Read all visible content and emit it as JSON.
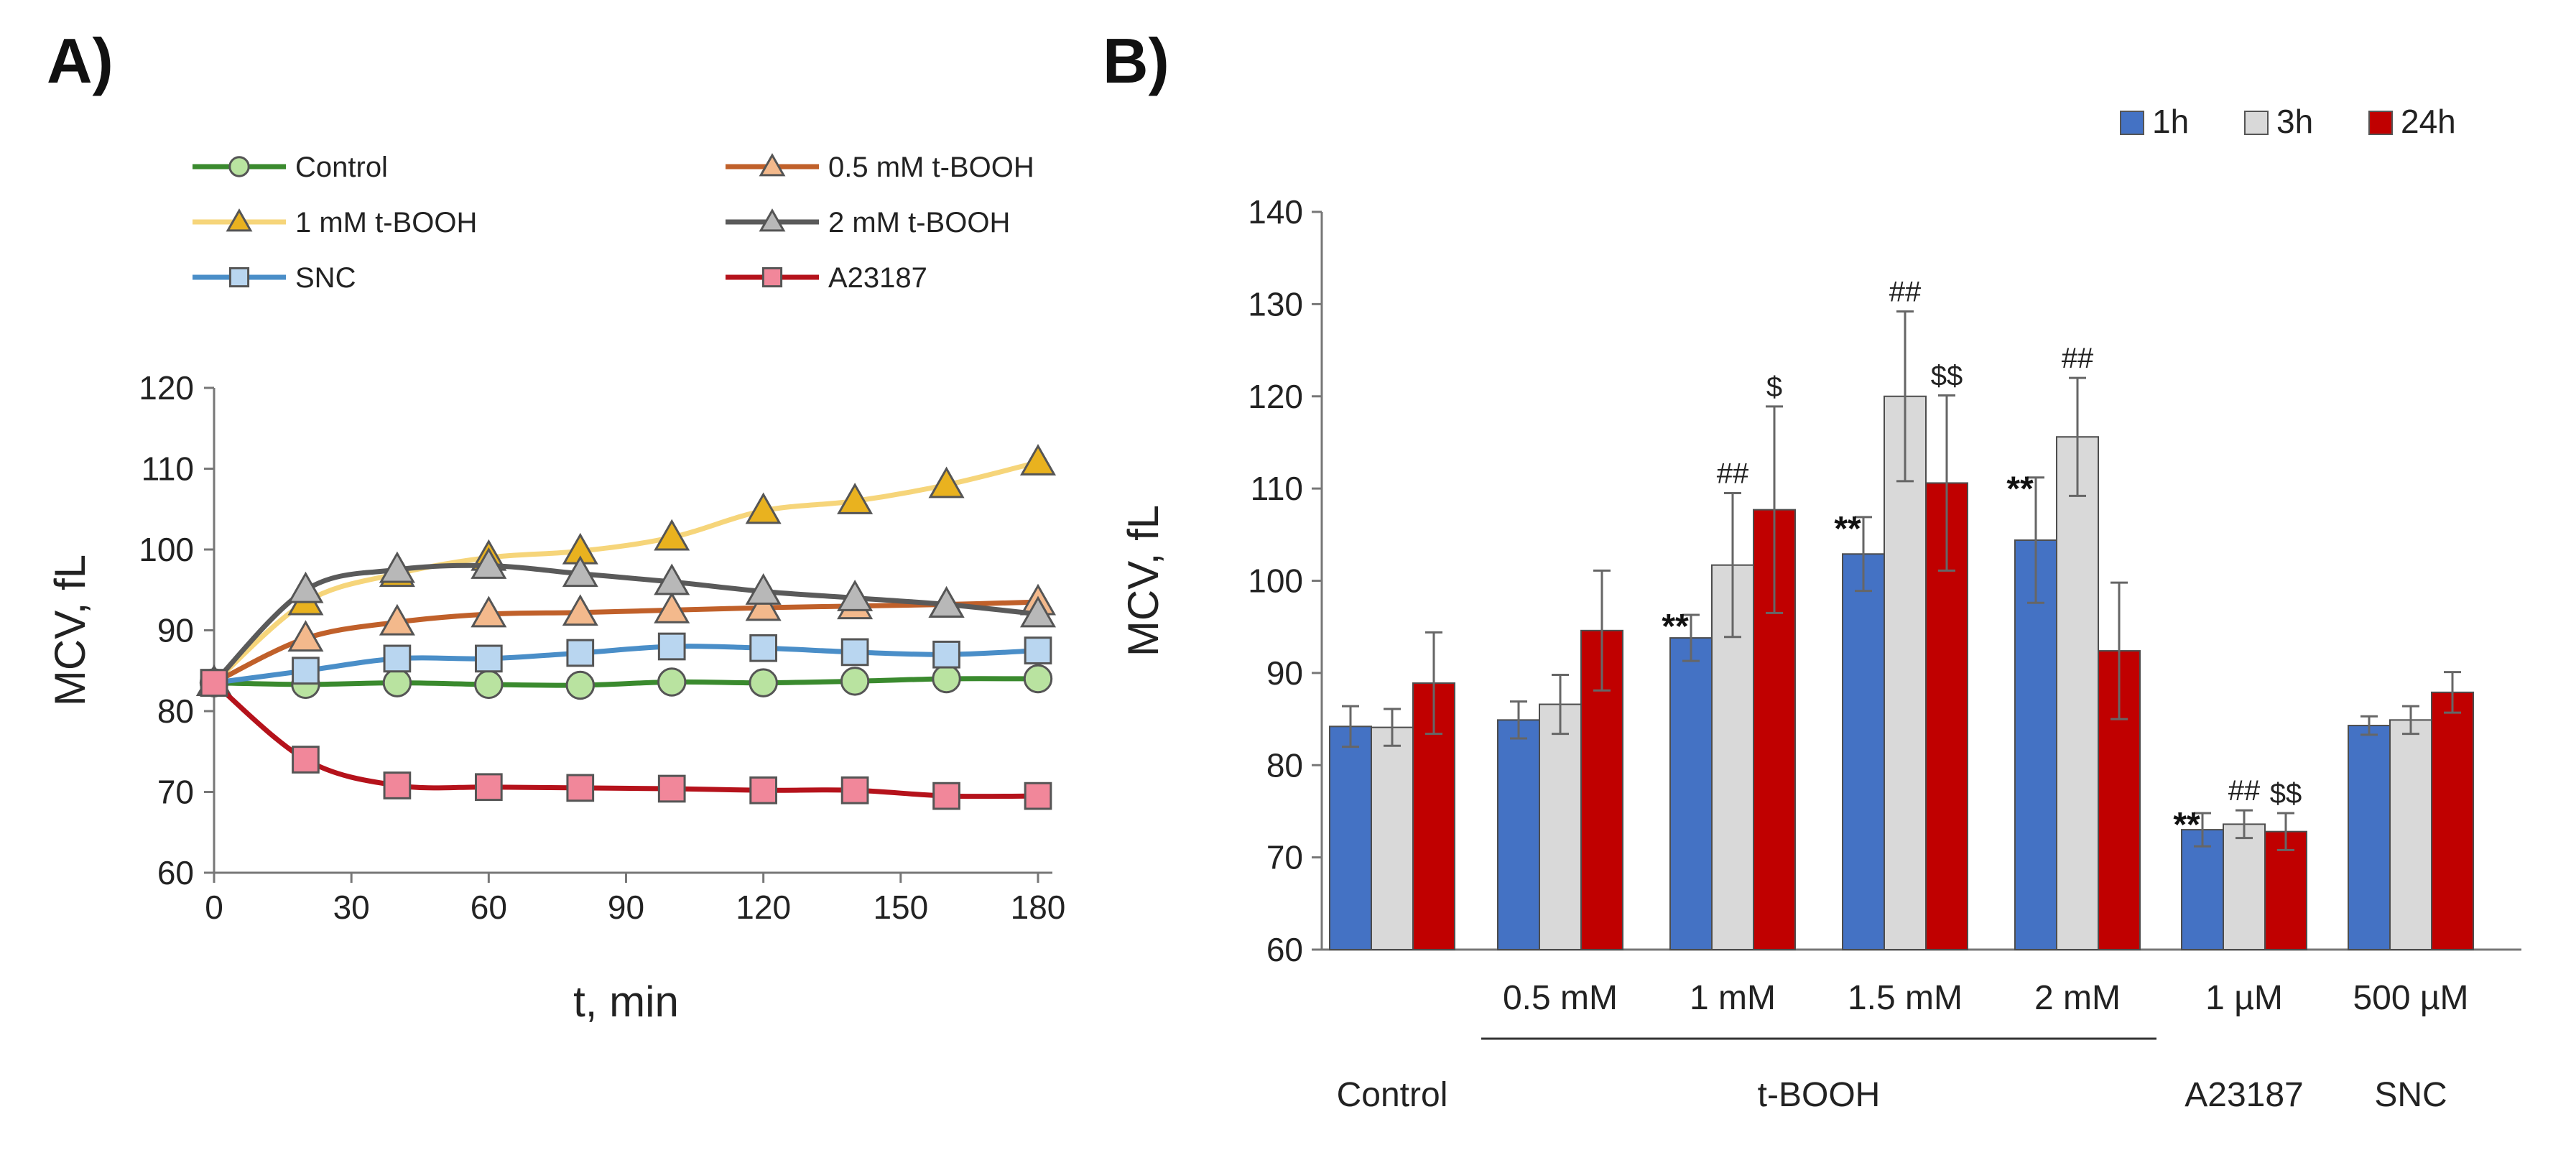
{
  "panels": {
    "a_label": "A)",
    "b_label": "B)"
  },
  "chart_data": [
    {
      "type": "line",
      "panel": "A",
      "title": "",
      "xlabel": "t, min",
      "ylabel": "MCV, fL",
      "xlim": [
        0,
        180
      ],
      "ylim": [
        60,
        120
      ],
      "xticks": [
        0,
        30,
        60,
        90,
        120,
        150,
        180
      ],
      "yticks": [
        60,
        70,
        80,
        90,
        100,
        110,
        120
      ],
      "grid": false,
      "legend_position": "top",
      "x": [
        0,
        20,
        40,
        60,
        80,
        100,
        120,
        140,
        160,
        180
      ],
      "series": [
        {
          "name": "Control",
          "marker": "circle",
          "color": "#3a8a2e",
          "fill": "#b9e3a0",
          "values": [
            83.5,
            83.3,
            83.5,
            83.3,
            83.2,
            83.6,
            83.5,
            83.7,
            84.0,
            84.0
          ]
        },
        {
          "name": "0.5 mM t-BOOH",
          "marker": "triangle",
          "color": "#c0602a",
          "fill": "#f3b98c",
          "values": [
            83.5,
            89.0,
            91.0,
            92.0,
            92.2,
            92.5,
            92.8,
            93.0,
            93.2,
            93.5
          ]
        },
        {
          "name": "1 mM t-BOOH",
          "marker": "triangle",
          "color": "#f6d57a",
          "fill": "#e9b21f",
          "values": [
            83.5,
            93.5,
            97.0,
            99.0,
            99.8,
            101.5,
            104.8,
            106.0,
            108.0,
            110.8
          ]
        },
        {
          "name": "2 mM t-BOOH",
          "marker": "triangle",
          "color": "#5a5a5a",
          "fill": "#b8b8b8",
          "values": [
            83.5,
            95.0,
            97.5,
            98.0,
            97.0,
            96.0,
            94.8,
            94.0,
            93.2,
            92.0
          ]
        },
        {
          "name": "SNC",
          "marker": "square",
          "color": "#4a8ec8",
          "fill": "#b9d6f0",
          "values": [
            83.5,
            85.0,
            86.5,
            86.5,
            87.2,
            88.0,
            87.8,
            87.3,
            87.0,
            87.5
          ]
        },
        {
          "name": "A23187",
          "marker": "square",
          "color": "#b5121b",
          "fill": "#f1879a",
          "values": [
            83.5,
            74.0,
            70.8,
            70.6,
            70.5,
            70.4,
            70.2,
            70.2,
            69.5,
            69.5
          ]
        }
      ]
    },
    {
      "type": "bar",
      "panel": "B",
      "title": "",
      "xlabel": "",
      "ylabel": "MCV, fL",
      "ylim": [
        60,
        140
      ],
      "yticks": [
        60,
        70,
        80,
        90,
        100,
        110,
        120,
        130,
        140
      ],
      "grid": false,
      "legend_position": "top-right",
      "categories": [
        "",
        "0.5 mM",
        "1 mM",
        "1.5 mM",
        "2 mM",
        "1 µM",
        "500 µM"
      ],
      "group_labels": [
        {
          "text": "Control",
          "from": 0,
          "to": 0,
          "underline": false
        },
        {
          "text": "t-BOOH",
          "from": 1,
          "to": 4,
          "underline": true
        },
        {
          "text": "A23187",
          "from": 5,
          "to": 5,
          "underline": false
        },
        {
          "text": "SNC",
          "from": 6,
          "to": 6,
          "underline": false
        }
      ],
      "series": [
        {
          "name": "1h",
          "color": "#4472c4",
          "values": [
            84.2,
            84.9,
            93.8,
            102.9,
            104.4,
            73.0,
            84.3
          ],
          "errors": [
            2.2,
            2.0,
            2.5,
            4.0,
            6.8,
            1.8,
            1.0
          ]
        },
        {
          "name": "3h",
          "color": "#d9d9d9",
          "values": [
            84.1,
            86.6,
            101.7,
            120.0,
            115.6,
            73.6,
            84.9
          ],
          "errors": [
            2.0,
            3.2,
            7.8,
            9.2,
            6.4,
            1.5,
            1.5
          ]
        },
        {
          "name": "24h",
          "color": "#c00000",
          "values": [
            88.9,
            94.6,
            107.7,
            110.6,
            92.4,
            72.8,
            87.9
          ],
          "errors": [
            5.5,
            6.5,
            11.2,
            9.5,
            7.4,
            2.0,
            2.2
          ]
        }
      ],
      "annotations": [
        {
          "category": 2,
          "series": 0,
          "text": "**"
        },
        {
          "category": 3,
          "series": 0,
          "text": "**"
        },
        {
          "category": 4,
          "series": 0,
          "text": "**"
        },
        {
          "category": 5,
          "series": 0,
          "text": "**"
        },
        {
          "category": 2,
          "series": 1,
          "text": "##"
        },
        {
          "category": 3,
          "series": 1,
          "text": "##"
        },
        {
          "category": 4,
          "series": 1,
          "text": "##"
        },
        {
          "category": 5,
          "series": 1,
          "text": "##"
        },
        {
          "category": 2,
          "series": 2,
          "text": "$"
        },
        {
          "category": 3,
          "series": 2,
          "text": "$$"
        },
        {
          "category": 5,
          "series": 2,
          "text": "$$"
        }
      ]
    }
  ]
}
